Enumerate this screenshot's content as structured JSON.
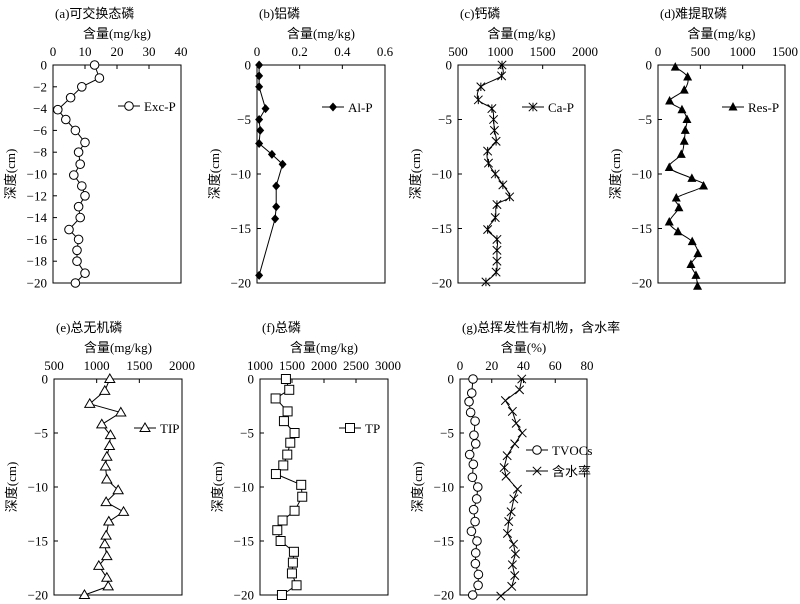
{
  "chart_data": [
    {
      "type": "line",
      "title": "(a)可交换态磷",
      "xlabel": "含量(mg/kg)",
      "ylabel": "深度(cm)",
      "xlim": [
        0,
        40
      ],
      "ylim": [
        -20,
        0
      ],
      "xticks": [
        0,
        10,
        20,
        30,
        40
      ],
      "yticks": [
        0,
        -2,
        -4,
        -6,
        -8,
        -10,
        -12,
        -14,
        -16,
        -18,
        -20
      ],
      "smooth": false,
      "series": [
        {
          "name": "Exc-P",
          "marker": "circle-open",
          "depth": [
            0,
            -1.2,
            -2,
            -3,
            -4.1,
            -5,
            -6,
            -7.1,
            -8,
            -9.1,
            -10.1,
            -11.1,
            -12,
            -13,
            -14,
            -15.1,
            -16,
            -17,
            -18,
            -19.1,
            -20
          ],
          "values": [
            13,
            14.5,
            9,
            5.5,
            1.5,
            4,
            7,
            10,
            8,
            8.5,
            6.5,
            9,
            10,
            8,
            8.5,
            5,
            8,
            7.5,
            7.5,
            10,
            7
          ]
        }
      ]
    },
    {
      "type": "line",
      "title": "(b)铝磷",
      "xlabel": "含量(mg/kg)",
      "ylabel": "深度(cm)",
      "xlim": [
        0,
        0.6
      ],
      "ylim": [
        -20,
        0
      ],
      "xticks": [
        0,
        0.2,
        0.4,
        0.6
      ],
      "yticks": [
        0,
        -5,
        -10,
        -15,
        -20
      ],
      "smooth": false,
      "series": [
        {
          "name": "Al-P",
          "marker": "diamond-filled",
          "depth": [
            0,
            -1,
            -2,
            -4,
            -5,
            -6,
            -7.2,
            -8.2,
            -9.1,
            -11.1,
            -13,
            -14.1,
            -19.3
          ],
          "values": [
            0.01,
            0.01,
            0.01,
            0.04,
            0.01,
            0.015,
            0.01,
            0.07,
            0.12,
            0.09,
            0.09,
            0.085,
            0.01
          ]
        }
      ]
    },
    {
      "type": "line",
      "title": "(c)钙磷",
      "xlabel": "含量(mg/kg)",
      "ylabel": "深度(cm)",
      "xlim": [
        500,
        2000
      ],
      "ylim": [
        -20,
        0
      ],
      "xticks": [
        500,
        1000,
        1500,
        2000
      ],
      "yticks": [
        0,
        -5,
        -10,
        -15,
        -20
      ],
      "smooth": true,
      "series": [
        {
          "name": "Ca-P",
          "marker": "asterisk",
          "depth": [
            0,
            -1,
            -2,
            -3.2,
            -4,
            -5,
            -6,
            -7,
            -7.9,
            -9,
            -10,
            -11,
            -12.1,
            -12.8,
            -14,
            -15.1,
            -16,
            -17,
            -18,
            -19,
            -19.9
          ],
          "values": [
            1020,
            1015,
            770,
            740,
            900,
            920,
            930,
            950,
            850,
            860,
            940,
            1030,
            1110,
            960,
            940,
            850,
            960,
            960,
            960,
            950,
            830
          ]
        }
      ]
    },
    {
      "type": "line",
      "title": "(d)难提取磷",
      "xlabel": "含量(mg/kg)",
      "ylabel": "深度(cm)",
      "xlim": [
        0,
        1500
      ],
      "ylim": [
        -20,
        0
      ],
      "xticks": [
        0,
        500,
        1000,
        1500
      ],
      "yticks": [
        0,
        -5,
        -10,
        -15,
        -20
      ],
      "smooth": true,
      "series": [
        {
          "name": "Res-P",
          "marker": "triangle-filled",
          "depth": [
            -0.2,
            -1.1,
            -2.3,
            -3.3,
            -4.1,
            -5,
            -6,
            -7,
            -8.2,
            -9.4,
            -10.4,
            -11.1,
            -12.2,
            -13.1,
            -14.4,
            -15.3,
            -16.2,
            -17.3,
            -18.3,
            -19.3,
            -20.3
          ],
          "values": [
            204,
            350,
            310,
            137,
            283,
            342,
            322,
            310,
            275,
            133,
            400,
            538,
            216,
            247,
            133,
            236,
            404,
            471,
            389,
            448,
            467
          ]
        }
      ]
    },
    {
      "type": "line",
      "title": "(e)总无机磷",
      "xlabel": "含量(mg/kg)",
      "ylabel": "深度(cm)",
      "xlim": [
        500,
        2000
      ],
      "ylim": [
        -20,
        0
      ],
      "xticks": [
        500,
        1000,
        1500,
        2000
      ],
      "yticks": [
        0,
        -5,
        -10,
        -15,
        -20
      ],
      "smooth": false,
      "series": [
        {
          "name": "TIP",
          "marker": "triangle-open",
          "depth": [
            0,
            -1.1,
            -2.3,
            -3.1,
            -4.2,
            -5.2,
            -6.2,
            -7.2,
            -8.1,
            -9.3,
            -10.3,
            -11.4,
            -12.3,
            -13.2,
            -14.5,
            -15.3,
            -16.4,
            -17.3,
            -18.4,
            -19.2,
            -20
          ],
          "values": [
            1154,
            1095,
            919,
            1283,
            1060,
            1162,
            1150,
            1119,
            1103,
            1119,
            1252,
            1111,
            1315,
            1142,
            1111,
            1095,
            1119,
            1025,
            1119,
            1135,
            857
          ]
        }
      ]
    },
    {
      "type": "line",
      "title": "(f)总磷",
      "xlabel": "含量(mg/kg)",
      "ylabel": "深度(cm)",
      "xlim": [
        1000,
        3000
      ],
      "ylim": [
        -20,
        0
      ],
      "xticks": [
        1000,
        1500,
        2000,
        2500,
        3000
      ],
      "yticks": [
        0,
        -5,
        -10,
        -15,
        -20
      ],
      "smooth": false,
      "series": [
        {
          "name": "TP",
          "marker": "square-open",
          "depth": [
            0,
            -1,
            -1.8,
            -3,
            -3.9,
            -5,
            -5.9,
            -7,
            -8,
            -8.8,
            -9.8,
            -10.9,
            -12.2,
            -13.1,
            -14,
            -15,
            -16,
            -17,
            -18,
            -19.1,
            -20
          ],
          "values": [
            1405,
            1457,
            1244,
            1431,
            1374,
            1540,
            1473,
            1426,
            1364,
            1249,
            1644,
            1660,
            1540,
            1353,
            1270,
            1322,
            1530,
            1514,
            1499,
            1571,
            1343
          ]
        }
      ]
    },
    {
      "type": "line",
      "title": "(g)总挥发性有机物，含水率",
      "xlabel": "含量(%)",
      "ylabel": "深度(cm)",
      "xlim": [
        0,
        80
      ],
      "ylim": [
        -20,
        0
      ],
      "xticks": [
        0,
        20,
        40,
        60,
        80
      ],
      "yticks": [
        0,
        -5,
        -10,
        -15,
        -20
      ],
      "smooth": false,
      "series": [
        {
          "name": "TVOCs",
          "marker": "circle-open",
          "depth": [
            0,
            -1.3,
            -2.1,
            -3.1,
            -3.9,
            -5.2,
            -6,
            -7,
            -7.9,
            -9.1,
            -10,
            -11.1,
            -12.1,
            -13.2,
            -14.1,
            -15,
            -16.1,
            -17.1,
            -18.1,
            -19.1,
            -20
          ],
          "values": [
            8.2,
            7.4,
            5.7,
            6.7,
            9.5,
            8.8,
            9.9,
            6.1,
            8.4,
            7.8,
            11.2,
            10.5,
            8.6,
            9.5,
            7.2,
            10.7,
            9.9,
            9.7,
            11.6,
            11.4,
            8
          ]
        },
        {
          "name": "含水率",
          "marker": "x-cross",
          "depth": [
            0,
            -1,
            -2,
            -3,
            -4.1,
            -5,
            -6,
            -7.1,
            -8.2,
            -9,
            -10.2,
            -11.1,
            -12.3,
            -13.2,
            -14.3,
            -15.3,
            -16.2,
            -17.2,
            -18.2,
            -19.2,
            -20.1
          ],
          "values": [
            38.9,
            37.5,
            28.6,
            33,
            35.4,
            39.2,
            34.5,
            29.7,
            27.8,
            29,
            36.2,
            33.9,
            32.2,
            30.7,
            29.9,
            33.7,
            34.9,
            33,
            34.5,
            32.6,
            25.7
          ]
        }
      ]
    }
  ]
}
